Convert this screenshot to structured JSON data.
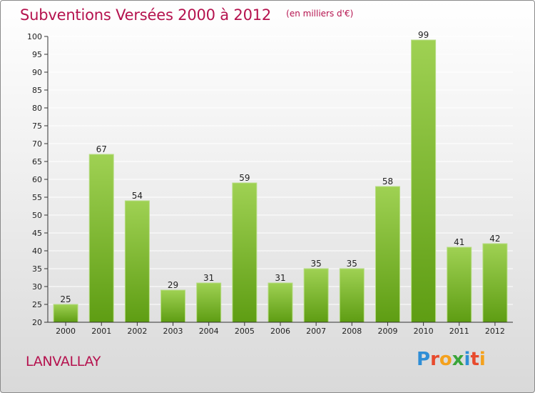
{
  "header": {
    "title": "Subventions Versées 2000 à 2012",
    "subtitle": "(en milliers d'€)"
  },
  "footer": {
    "commune": "LANVALLAY",
    "logo_text": "Proxiti",
    "logo_letters": [
      {
        "char": "P",
        "color": "#2f8ed6"
      },
      {
        "char": "r",
        "color": "#e84a2d"
      },
      {
        "char": "o",
        "color": "#f4a11d"
      },
      {
        "char": "x",
        "color": "#3aa53a"
      },
      {
        "char": "i",
        "color": "#2f8ed6"
      },
      {
        "char": "t",
        "color": "#e84a2d"
      },
      {
        "char": "i",
        "color": "#f4a11d"
      }
    ]
  },
  "colors": {
    "accent": "#b5124e",
    "bar_top": "#9fd153",
    "bar_bottom": "#5e9d13",
    "grid": "#ffffff"
  },
  "chart_data": {
    "type": "bar",
    "title": "Subventions Versées 2000 à 2012",
    "subtitle": "(en milliers d'€)",
    "categories": [
      "2000",
      "2001",
      "2002",
      "2003",
      "2004",
      "2005",
      "2006",
      "2007",
      "2008",
      "2009",
      "2010",
      "2011",
      "2012"
    ],
    "values": [
      25,
      67,
      54,
      29,
      31,
      59,
      31,
      35,
      35,
      58,
      99,
      41,
      42
    ],
    "xlabel": "",
    "ylabel": "",
    "ylim": [
      20,
      100
    ],
    "yticks": [
      20,
      25,
      30,
      35,
      40,
      45,
      50,
      55,
      60,
      65,
      70,
      75,
      80,
      85,
      90,
      95,
      100
    ],
    "grid": true,
    "legend": "none"
  }
}
